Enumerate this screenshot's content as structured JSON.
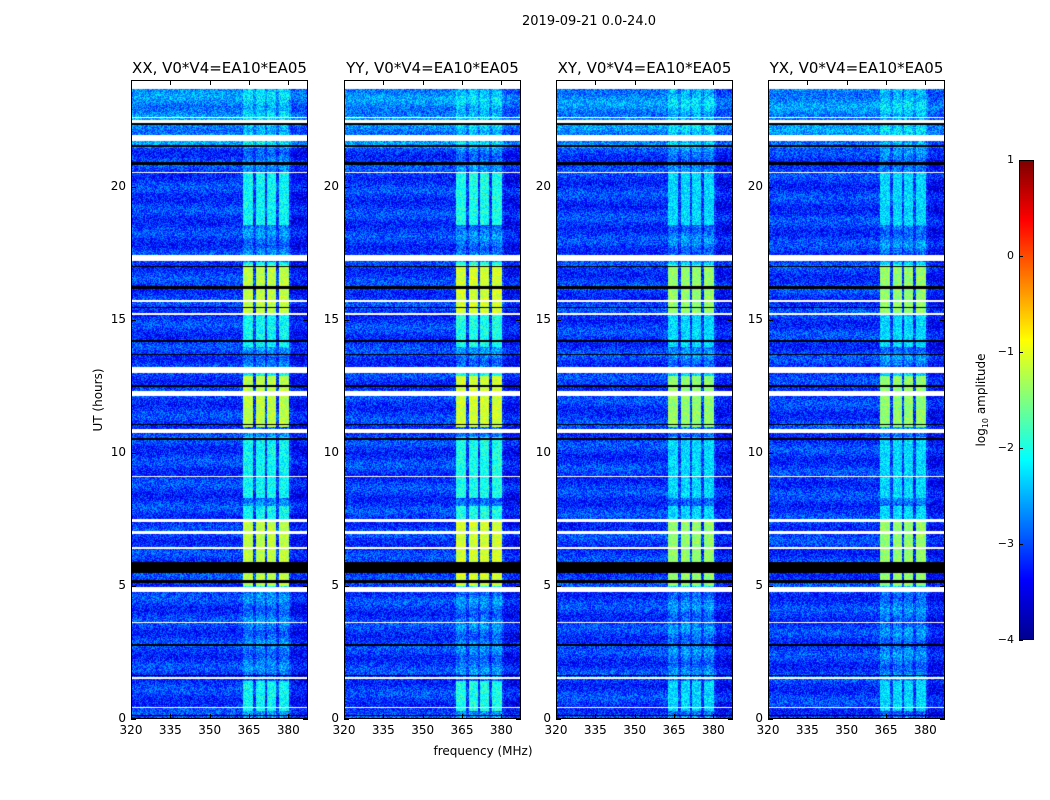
{
  "chart_data": {
    "type": "heatmap",
    "suptitle": "2019-09-21 0.0-24.0",
    "xlabel": "frequency (MHz)",
    "ylabel": "UT (hours)",
    "xlim": [
      320,
      387.5
    ],
    "ylim": [
      0,
      24
    ],
    "xticks": [
      "320",
      "335",
      "350",
      "365",
      "380"
    ],
    "xtick_values": [
      320,
      335,
      350,
      365,
      380
    ],
    "yticks": [
      "0",
      "5",
      "10",
      "15",
      "20"
    ],
    "ytick_values": [
      0,
      5,
      10,
      15,
      20
    ],
    "panels": [
      {
        "title": "XX, V0*V4=EA10*EA05",
        "band_level": -1.2
      },
      {
        "title": "YY, V0*V4=EA10*EA05",
        "band_level": -1.1
      },
      {
        "title": "XY, V0*V4=EA10*EA05",
        "band_level": -1.4
      },
      {
        "title": "YX, V0*V4=EA10*EA05",
        "band_level": -1.4
      }
    ],
    "background_level": -3.1,
    "rfi_subbands_mhz": [
      [
        362.5,
        366.5
      ],
      [
        367.5,
        371
      ],
      [
        372,
        375.5
      ],
      [
        376.5,
        380.5
      ]
    ],
    "rfi_active_hours": [
      [
        0.3,
        1.4
      ],
      [
        4.9,
        8.0
      ],
      [
        8.3,
        10.6
      ],
      [
        11.0,
        13.0
      ],
      [
        14.0,
        17.2
      ],
      [
        18.6,
        20.6
      ]
    ],
    "rfi_strong_hours": [
      [
        5.0,
        7.5
      ],
      [
        11.0,
        12.9
      ],
      [
        15.2,
        17.1
      ]
    ],
    "flagged_hours": [
      [
        22.45,
        22.55
      ],
      [
        22.62,
        22.68
      ],
      [
        21.75,
        22.0
      ],
      [
        20.55,
        20.6
      ],
      [
        17.25,
        17.45
      ],
      [
        15.7,
        15.75
      ],
      [
        15.2,
        15.28
      ],
      [
        13.0,
        13.25
      ],
      [
        12.15,
        12.35
      ],
      [
        10.75,
        10.9
      ],
      [
        9.1,
        9.15
      ],
      [
        7.4,
        7.5
      ],
      [
        6.95,
        7.05
      ],
      [
        6.4,
        6.45
      ],
      [
        4.75,
        4.95
      ],
      [
        3.6,
        3.65
      ],
      [
        1.5,
        1.55
      ],
      [
        0.4,
        0.45
      ]
    ],
    "dark_hours": [
      [
        22.35,
        22.42
      ],
      [
        21.55,
        21.62
      ],
      [
        20.85,
        20.95
      ],
      [
        17.0,
        17.05
      ],
      [
        16.2,
        16.3
      ],
      [
        15.45,
        15.5
      ],
      [
        14.2,
        14.25
      ],
      [
        13.7,
        13.75
      ],
      [
        12.5,
        12.55
      ],
      [
        11.05,
        11.1
      ],
      [
        10.5,
        10.55
      ],
      [
        5.5,
        5.9
      ],
      [
        5.1,
        5.2
      ],
      [
        2.75,
        2.8
      ],
      [
        1.6,
        1.65
      ],
      [
        0.1,
        0.15
      ]
    ],
    "colorbar": {
      "label": "log",
      "label_sub": "10",
      "label_suffix": " amplitude",
      "range": [
        -4,
        1
      ],
      "ticks": [
        "1",
        "0",
        "−1",
        "−2",
        "−3",
        "−4"
      ],
      "tick_values": [
        1,
        0,
        -1,
        -2,
        -3,
        -4
      ],
      "colormap": "jet"
    }
  }
}
